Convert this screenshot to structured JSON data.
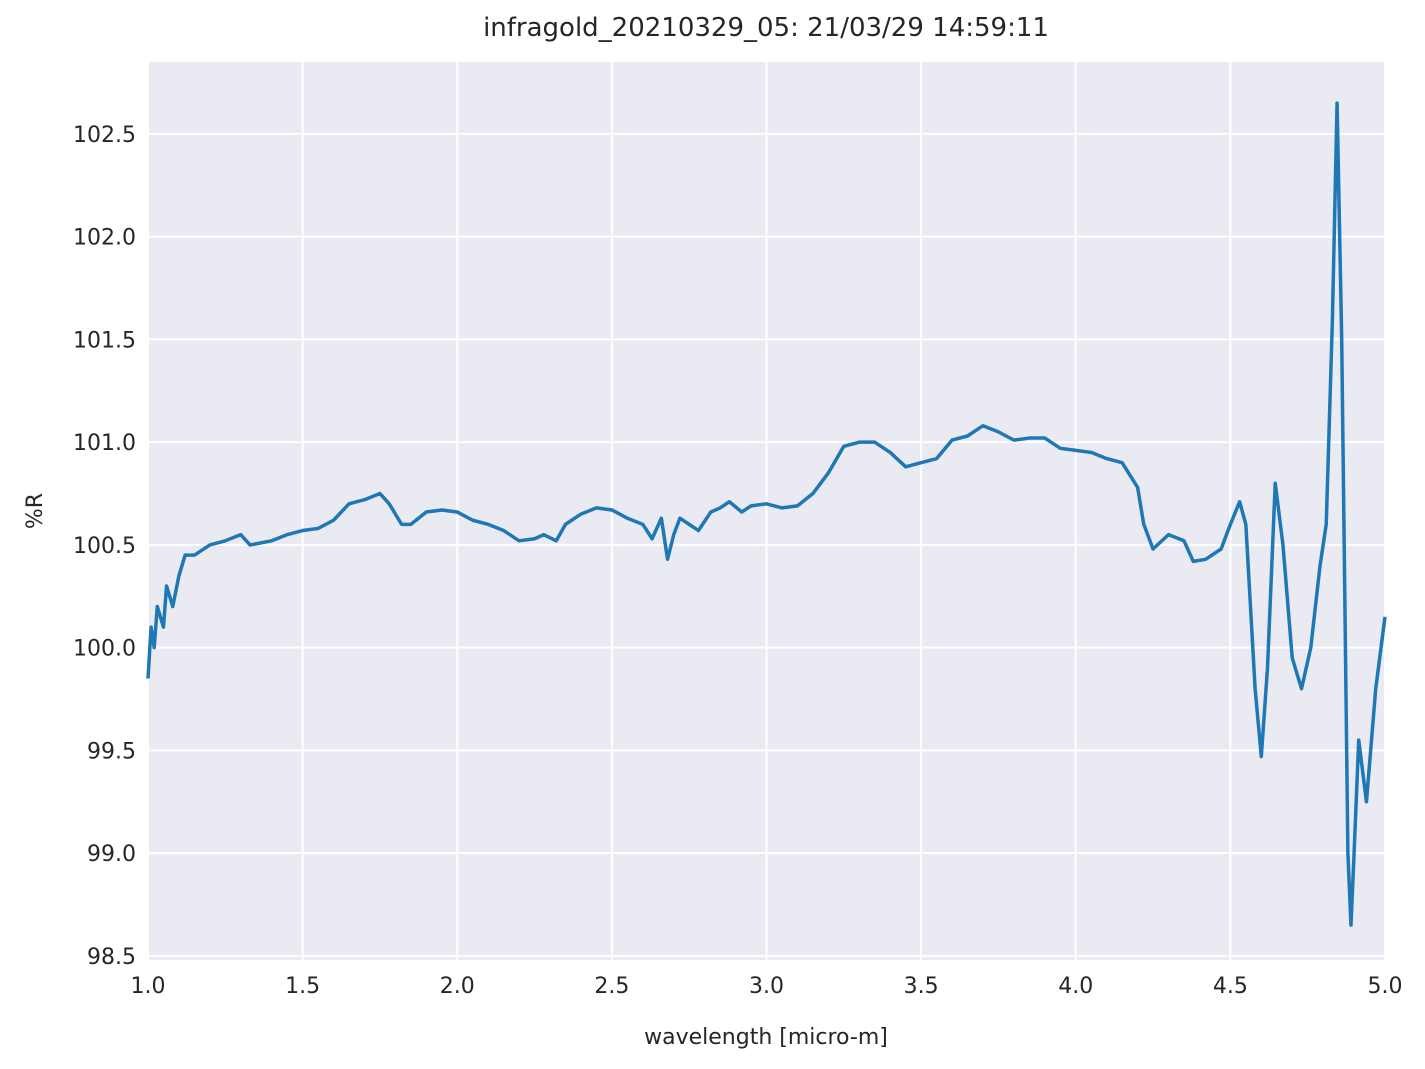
{
  "chart_data": {
    "type": "line",
    "title": "infragold_20210329_05:  21/03/29 14:59:11",
    "x_label": "wavelength [micro-m]",
    "y_label": "%R",
    "xlim": [
      1.0,
      5.0
    ],
    "ylim": [
      98.48,
      102.85
    ],
    "xticks": [
      {
        "value": 1.0,
        "label": "1.0"
      },
      1.5,
      {
        "value": 2.0,
        "label": "2.0"
      },
      2.5,
      {
        "value": 3.0,
        "label": "3.0"
      },
      3.5,
      {
        "value": 4.0,
        "label": "4.0"
      },
      4.5,
      {
        "value": 5.0,
        "label": "5.0"
      }
    ],
    "yticks": [
      98.5,
      {
        "value": 99.0,
        "label": "99.0"
      },
      99.5,
      {
        "value": 100.0,
        "label": "100.0"
      },
      100.5,
      {
        "value": 101.0,
        "label": "101.0"
      },
      101.5,
      {
        "value": 102.0,
        "label": "102.0"
      },
      102.5
    ],
    "grid": true,
    "series": [
      {
        "color": "#1f77b4",
        "x": [
          1.0,
          1.01,
          1.02,
          1.03,
          1.05,
          1.06,
          1.08,
          1.1,
          1.12,
          1.15,
          1.2,
          1.25,
          1.3,
          1.33,
          1.4,
          1.45,
          1.5,
          1.55,
          1.6,
          1.65,
          1.7,
          1.75,
          1.78,
          1.82,
          1.85,
          1.9,
          1.95,
          2.0,
          2.05,
          2.1,
          2.15,
          2.2,
          2.25,
          2.28,
          2.32,
          2.35,
          2.4,
          2.45,
          2.5,
          2.55,
          2.6,
          2.63,
          2.66,
          2.68,
          2.7,
          2.72,
          2.75,
          2.78,
          2.82,
          2.85,
          2.88,
          2.92,
          2.95,
          3.0,
          3.05,
          3.1,
          3.15,
          3.2,
          3.25,
          3.3,
          3.35,
          3.4,
          3.45,
          3.5,
          3.55,
          3.6,
          3.65,
          3.7,
          3.75,
          3.8,
          3.85,
          3.9,
          3.95,
          4.0,
          4.05,
          4.1,
          4.15,
          4.2,
          4.22,
          4.25,
          4.3,
          4.35,
          4.38,
          4.42,
          4.47,
          4.5,
          4.53,
          4.55,
          4.58,
          4.6,
          4.62,
          4.645,
          4.67,
          4.7,
          4.73,
          4.76,
          4.79,
          4.81,
          4.83,
          4.845,
          4.86,
          4.88,
          4.89,
          4.9,
          4.915,
          4.94,
          4.97,
          5.0
        ],
        "values": [
          99.85,
          100.1,
          100.0,
          100.2,
          100.1,
          100.3,
          100.2,
          100.35,
          100.45,
          100.45,
          100.5,
          100.52,
          100.55,
          100.5,
          100.52,
          100.55,
          100.57,
          100.58,
          100.62,
          100.7,
          100.72,
          100.75,
          100.7,
          100.6,
          100.6,
          100.66,
          100.67,
          100.66,
          100.62,
          100.6,
          100.57,
          100.52,
          100.53,
          100.55,
          100.52,
          100.6,
          100.65,
          100.68,
          100.67,
          100.63,
          100.6,
          100.53,
          100.63,
          100.43,
          100.55,
          100.63,
          100.6,
          100.57,
          100.66,
          100.68,
          100.71,
          100.66,
          100.69,
          100.7,
          100.68,
          100.69,
          100.75,
          100.85,
          100.98,
          101.0,
          101.0,
          100.95,
          100.88,
          100.9,
          100.92,
          101.01,
          101.03,
          101.08,
          101.05,
          101.01,
          101.02,
          101.02,
          100.97,
          100.96,
          100.95,
          100.92,
          100.9,
          100.78,
          100.6,
          100.48,
          100.55,
          100.52,
          100.42,
          100.43,
          100.48,
          100.6,
          100.71,
          100.6,
          99.8,
          99.47,
          99.9,
          100.8,
          100.5,
          99.95,
          99.8,
          100.0,
          100.4,
          100.6,
          101.6,
          102.65,
          101.5,
          99.0,
          98.65,
          99.0,
          99.55,
          99.25,
          99.8,
          100.15
        ]
      }
    ]
  }
}
